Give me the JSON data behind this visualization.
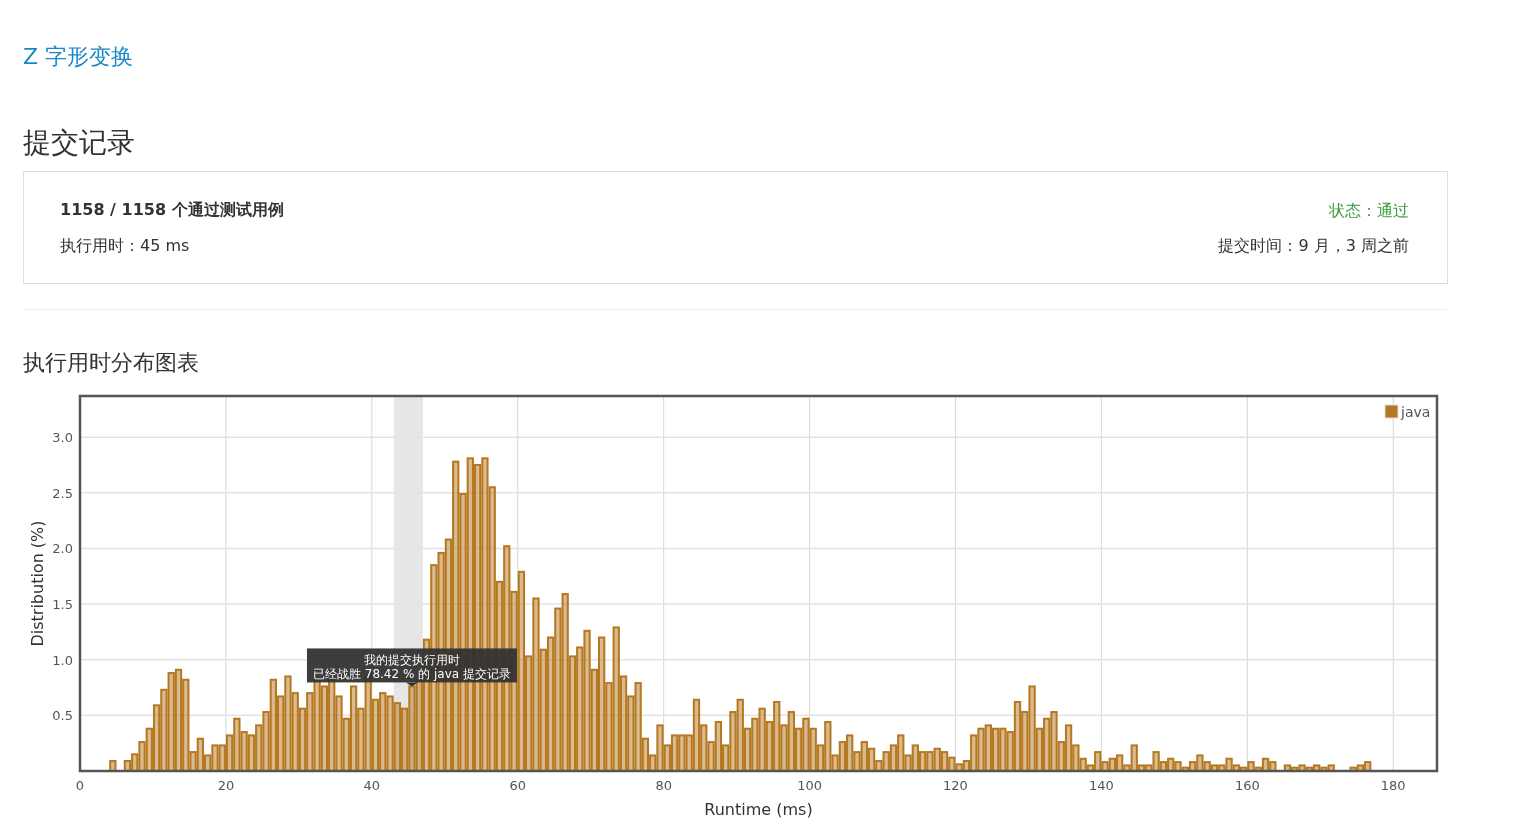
{
  "chart_data": {
    "type": "histogram",
    "title": "Z 字形变换",
    "subtitle": "提交记录",
    "xlabel": "Runtime (ms)",
    "ylabel": "Distribution (%)",
    "bins": [
      4,
      5,
      6,
      7,
      8,
      9,
      10,
      11,
      12,
      13,
      14,
      15,
      16,
      17,
      18,
      19,
      20,
      21,
      22,
      23,
      24,
      25,
      26,
      27,
      28,
      29,
      30,
      31,
      32,
      33,
      34,
      35,
      36,
      37,
      38,
      39,
      40,
      41,
      42,
      43,
      44,
      45,
      46,
      47,
      48,
      49,
      50,
      51,
      52,
      53,
      54,
      55,
      56,
      57,
      58,
      59,
      60,
      61,
      62,
      63,
      64,
      65,
      66,
      67,
      68,
      69,
      70,
      71,
      72,
      73,
      74,
      75,
      76,
      77,
      78,
      79,
      80,
      81,
      82,
      83,
      84,
      85,
      86,
      87,
      88,
      89,
      90,
      91,
      92,
      93,
      94,
      95,
      96,
      97,
      98,
      99,
      100,
      101,
      102,
      103,
      104,
      105,
      106,
      107,
      108,
      109,
      110,
      111,
      112,
      113,
      114,
      115,
      116,
      117,
      118,
      119,
      120,
      121,
      122,
      123,
      124,
      125,
      126,
      127,
      128,
      129,
      130,
      131,
      132,
      133,
      134,
      135,
      136,
      137,
      138,
      139,
      140,
      141,
      142,
      143,
      144,
      145,
      146,
      147,
      148,
      149,
      150,
      151,
      152,
      153,
      154,
      155,
      156,
      157,
      158,
      159,
      160,
      161,
      162,
      163,
      164,
      165,
      166,
      167,
      168,
      169,
      170,
      171,
      172,
      173,
      174,
      175,
      176,
      177
    ],
    "series": [
      {
        "name": "java",
        "color": "#b5771f",
        "values": [
          0.09,
          0,
          0.09,
          0.15,
          0.26,
          0.38,
          0.59,
          0.73,
          0.88,
          0.91,
          0.82,
          0.17,
          0.29,
          0.14,
          0.23,
          0.23,
          0.32,
          0.47,
          0.35,
          0.32,
          0.41,
          0.53,
          0.82,
          0.67,
          0.85,
          0.7,
          0.56,
          0.7,
          0.82,
          0.76,
          0.82,
          0.67,
          0.47,
          0.76,
          0.56,
          0.85,
          0.64,
          0.7,
          0.67,
          0.61,
          0.56,
          0.76,
          0.82,
          1.18,
          1.85,
          1.96,
          2.08,
          2.78,
          2.49,
          2.81,
          2.75,
          2.81,
          2.55,
          1.7,
          2.02,
          1.61,
          1.79,
          1.03,
          1.55,
          1.09,
          1.2,
          1.46,
          1.59,
          1.03,
          1.11,
          1.26,
          0.91,
          1.2,
          0.79,
          1.29,
          0.85,
          0.67,
          0.79,
          0.29,
          0.14,
          0.41,
          0.23,
          0.32,
          0.32,
          0.32,
          0.64,
          0.41,
          0.26,
          0.44,
          0.23,
          0.53,
          0.64,
          0.38,
          0.47,
          0.56,
          0.44,
          0.62,
          0.41,
          0.53,
          0.38,
          0.47,
          0.38,
          0.23,
          0.44,
          0.14,
          0.26,
          0.32,
          0.17,
          0.26,
          0.2,
          0.09,
          0.17,
          0.23,
          0.32,
          0.14,
          0.23,
          0.17,
          0.17,
          0.2,
          0.17,
          0.12,
          0.06,
          0.09,
          0.32,
          0.38,
          0.41,
          0.38,
          0.38,
          0.35,
          0.62,
          0.53,
          0.76,
          0.38,
          0.47,
          0.53,
          0.26,
          0.41,
          0.23,
          0.11,
          0.05,
          0.17,
          0.08,
          0.11,
          0.14,
          0.05,
          0.23,
          0.05,
          0.05,
          0.17,
          0.08,
          0.11,
          0.08,
          0.03,
          0.08,
          0.14,
          0.08,
          0.05,
          0.05,
          0.11,
          0.05,
          0.03,
          0.08,
          0.03,
          0.11,
          0.08,
          0,
          0.05,
          0.03,
          0.05,
          0.03,
          0.05,
          0.03,
          0.05,
          0,
          0,
          0.03,
          0.05,
          0.08
        ]
      }
    ],
    "xlim": [
      0,
      186
    ],
    "ylim": [
      0,
      3.37
    ],
    "xticks": [
      0,
      20,
      40,
      60,
      80,
      100,
      120,
      140,
      160,
      180
    ],
    "yticks": [
      0.5,
      {
        "value": 1,
        "label": "1.0"
      },
      1.5,
      {
        "value": 2,
        "label": "2.0"
      },
      2.5,
      {
        "value": 3,
        "label": "3.0"
      }
    ],
    "grid": true,
    "legend": "top right",
    "bands": [
      {
        "axis": "x",
        "from": 43,
        "to": 47,
        "color": "#e6e6e6"
      }
    ],
    "annotations": [
      "1158 / 1158 个通过测试用例",
      "执行用时：45 ms",
      "状态：通过",
      "提交时间：9 月，3 周之前",
      "执行用时分布图表",
      {
        "text": "我的提交执行用时",
        "x": 45.5,
        "y": 0.76
      },
      {
        "text": "已经战胜 78.42 % 的 java 提交记录",
        "x": 45.5,
        "y": 0.76
      }
    ]
  }
}
